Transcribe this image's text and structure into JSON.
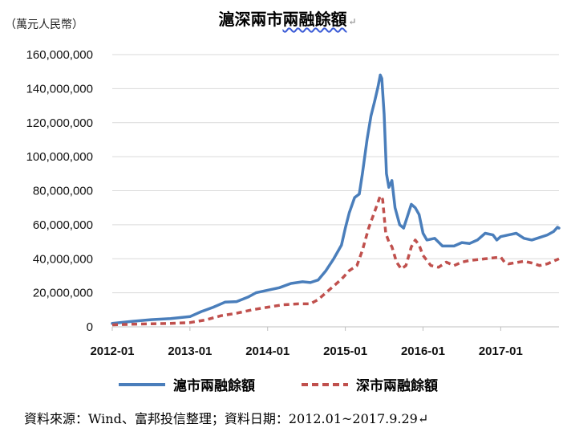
{
  "header": {
    "unit": "（萬元人民幣）",
    "title_prefix": "滬深兩市",
    "title_wavy": "兩融餘額",
    "para_mark": "↵"
  },
  "footer": {
    "source": "資料來源：Wind、富邦投信整理；資料日期：2012.01~2017.9.29↵"
  },
  "colors": {
    "sh": "#4a7ebb",
    "sz": "#c0504d",
    "grid": "#d9d9d9",
    "axis": "#bfbfbf"
  },
  "chart_data": {
    "type": "line",
    "title": "滬深兩市兩融餘額",
    "ylabel": "（萬元人民幣）",
    "xlabel": "",
    "ylim": [
      0,
      160000000
    ],
    "yticks": [
      "0",
      "20,000,000",
      "40,000,000",
      "60,000,000",
      "80,000,000",
      "100,000,000",
      "120,000,000",
      "140,000,000",
      "160,000,000"
    ],
    "xticks": [
      "2012-01",
      "2013-01",
      "2014-01",
      "2015-01",
      "2016-01",
      "2017-01"
    ],
    "xlim": [
      2012.0,
      2017.75
    ],
    "grid": true,
    "legend": "bottom",
    "series": [
      {
        "name": "滬市兩融餘額",
        "style": "solid",
        "points": [
          [
            2012.0,
            2000000
          ],
          [
            2012.25,
            3200000
          ],
          [
            2012.5,
            4200000
          ],
          [
            2012.75,
            4800000
          ],
          [
            2013.0,
            6000000
          ],
          [
            2013.15,
            9000000
          ],
          [
            2013.3,
            11500000
          ],
          [
            2013.45,
            14500000
          ],
          [
            2013.6,
            14800000
          ],
          [
            2013.75,
            17500000
          ],
          [
            2013.85,
            20000000
          ],
          [
            2014.0,
            21500000
          ],
          [
            2014.15,
            23000000
          ],
          [
            2014.3,
            25500000
          ],
          [
            2014.45,
            26500000
          ],
          [
            2014.55,
            26000000
          ],
          [
            2014.65,
            27500000
          ],
          [
            2014.75,
            33000000
          ],
          [
            2014.85,
            40000000
          ],
          [
            2014.95,
            48000000
          ],
          [
            2015.0,
            58000000
          ],
          [
            2015.05,
            67000000
          ],
          [
            2015.12,
            76000000
          ],
          [
            2015.18,
            78000000
          ],
          [
            2015.22,
            90000000
          ],
          [
            2015.28,
            110000000
          ],
          [
            2015.33,
            124000000
          ],
          [
            2015.38,
            133000000
          ],
          [
            2015.42,
            141000000
          ],
          [
            2015.45,
            148000000
          ],
          [
            2015.47,
            146000000
          ],
          [
            2015.5,
            125000000
          ],
          [
            2015.53,
            90000000
          ],
          [
            2015.56,
            82000000
          ],
          [
            2015.6,
            86000000
          ],
          [
            2015.64,
            70000000
          ],
          [
            2015.7,
            60000000
          ],
          [
            2015.75,
            58000000
          ],
          [
            2015.8,
            65000000
          ],
          [
            2015.85,
            72000000
          ],
          [
            2015.9,
            70000000
          ],
          [
            2015.95,
            66000000
          ],
          [
            2016.0,
            55000000
          ],
          [
            2016.05,
            51000000
          ],
          [
            2016.15,
            52000000
          ],
          [
            2016.25,
            47500000
          ],
          [
            2016.4,
            47500000
          ],
          [
            2016.5,
            49500000
          ],
          [
            2016.6,
            49000000
          ],
          [
            2016.7,
            51000000
          ],
          [
            2016.8,
            55000000
          ],
          [
            2016.9,
            54000000
          ],
          [
            2016.95,
            51000000
          ],
          [
            2017.0,
            53000000
          ],
          [
            2017.1,
            54000000
          ],
          [
            2017.2,
            55000000
          ],
          [
            2017.3,
            52000000
          ],
          [
            2017.4,
            51000000
          ],
          [
            2017.5,
            52500000
          ],
          [
            2017.6,
            54000000
          ],
          [
            2017.68,
            56000000
          ],
          [
            2017.73,
            58500000
          ],
          [
            2017.75,
            58000000
          ]
        ]
      },
      {
        "name": "深市兩融餘額",
        "style": "dashed",
        "points": [
          [
            2012.0,
            1200000
          ],
          [
            2012.25,
            1500000
          ],
          [
            2012.5,
            1800000
          ],
          [
            2012.75,
            2000000
          ],
          [
            2013.0,
            2500000
          ],
          [
            2013.2,
            4000000
          ],
          [
            2013.4,
            6500000
          ],
          [
            2013.6,
            8000000
          ],
          [
            2013.8,
            10000000
          ],
          [
            2014.0,
            11500000
          ],
          [
            2014.2,
            13000000
          ],
          [
            2014.4,
            13500000
          ],
          [
            2014.55,
            13500000
          ],
          [
            2014.65,
            16000000
          ],
          [
            2014.8,
            22000000
          ],
          [
            2014.95,
            28000000
          ],
          [
            2015.05,
            33000000
          ],
          [
            2015.15,
            36000000
          ],
          [
            2015.22,
            45000000
          ],
          [
            2015.3,
            58000000
          ],
          [
            2015.38,
            68000000
          ],
          [
            2015.45,
            77000000
          ],
          [
            2015.48,
            75000000
          ],
          [
            2015.52,
            55000000
          ],
          [
            2015.56,
            50000000
          ],
          [
            2015.6,
            47000000
          ],
          [
            2015.66,
            38000000
          ],
          [
            2015.72,
            34000000
          ],
          [
            2015.78,
            36000000
          ],
          [
            2015.85,
            47000000
          ],
          [
            2015.9,
            51000000
          ],
          [
            2015.95,
            48000000
          ],
          [
            2016.0,
            42000000
          ],
          [
            2016.1,
            36000000
          ],
          [
            2016.2,
            35000000
          ],
          [
            2016.3,
            38000000
          ],
          [
            2016.4,
            36000000
          ],
          [
            2016.5,
            38000000
          ],
          [
            2016.6,
            39000000
          ],
          [
            2016.8,
            40000000
          ],
          [
            2017.0,
            41000000
          ],
          [
            2017.05,
            38000000
          ],
          [
            2017.1,
            37000000
          ],
          [
            2017.3,
            38500000
          ],
          [
            2017.4,
            37500000
          ],
          [
            2017.5,
            36000000
          ],
          [
            2017.6,
            37000000
          ],
          [
            2017.7,
            39000000
          ],
          [
            2017.75,
            40000000
          ]
        ]
      }
    ]
  }
}
